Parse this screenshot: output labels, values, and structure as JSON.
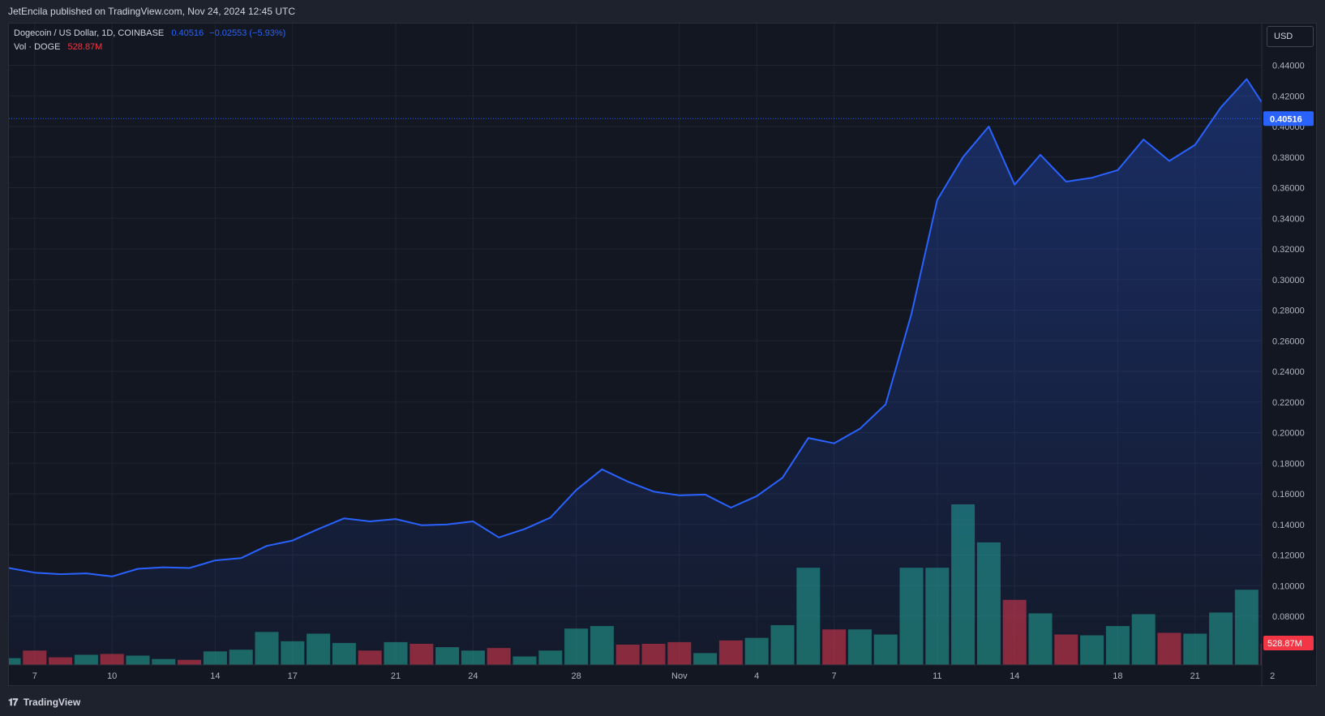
{
  "publish_header": "JetEncila published on TradingView.com, Nov 24, 2024 12:45 UTC",
  "legend": {
    "symbol": "Dogecoin / US Dollar, 1D, COINBASE",
    "price": "0.40516",
    "change": "−0.02553 (−5.93%)",
    "vol_label": "Vol · DOGE",
    "vol_value": "528.87M"
  },
  "currency_button": "USD",
  "footer_brand": "TradingView",
  "colors": {
    "background": "#131722",
    "line": "#2962ff",
    "volume_up": "#22ab94",
    "volume_down": "#f23645",
    "grid": "#1f2430"
  },
  "chart_data": {
    "type": "area",
    "y_axis": {
      "range": [
        0.07,
        0.455
      ],
      "ticks": [
        "0.08000",
        "0.10000",
        "0.12000",
        "0.14000",
        "0.16000",
        "0.18000",
        "0.20000",
        "0.22000",
        "0.24000",
        "0.26000",
        "0.28000",
        "0.30000",
        "0.32000",
        "0.34000",
        "0.36000",
        "0.38000",
        "0.40000",
        "0.42000",
        "0.44000"
      ]
    },
    "x_axis_ticks": [
      {
        "index": 1,
        "label": "7"
      },
      {
        "index": 4,
        "label": "10"
      },
      {
        "index": 8,
        "label": "14"
      },
      {
        "index": 11,
        "label": "17"
      },
      {
        "index": 15,
        "label": "21"
      },
      {
        "index": 18,
        "label": "24"
      },
      {
        "index": 22,
        "label": "28"
      },
      {
        "index": 26,
        "label": "Nov"
      },
      {
        "index": 29,
        "label": "4"
      },
      {
        "index": 32,
        "label": "7"
      },
      {
        "index": 36,
        "label": "11"
      },
      {
        "index": 39,
        "label": "14"
      },
      {
        "index": 43,
        "label": "18"
      },
      {
        "index": 46,
        "label": "21"
      },
      {
        "index": 49,
        "label": "2"
      }
    ],
    "close": [
      0.1115,
      0.1085,
      0.1075,
      0.108,
      0.106,
      0.111,
      0.112,
      0.1115,
      0.1165,
      0.118,
      0.126,
      0.1295,
      0.137,
      0.144,
      0.142,
      0.1435,
      0.1395,
      0.14,
      0.142,
      0.1315,
      0.137,
      0.1445,
      0.1625,
      0.176,
      0.168,
      0.1615,
      0.159,
      0.1595,
      0.151,
      0.1585,
      0.1705,
      0.1965,
      0.193,
      0.2025,
      0.2185,
      0.2775,
      0.352,
      0.38,
      0.4,
      0.362,
      0.3815,
      0.364,
      0.3665,
      0.3715,
      0.3915,
      0.3775,
      0.388,
      0.4125,
      0.431,
      0.40516
    ],
    "volume_up": [
      true,
      false,
      false,
      true,
      false,
      true,
      true,
      false,
      true,
      true,
      true,
      true,
      true,
      true,
      false,
      true,
      false,
      true,
      true,
      false,
      true,
      true,
      true,
      true,
      false,
      false,
      false,
      true,
      false,
      true,
      true,
      true,
      false,
      true,
      true,
      true,
      true,
      true,
      true,
      false,
      true,
      false,
      true,
      true,
      true,
      false,
      true,
      true,
      true,
      false
    ],
    "volume": [
      0.08,
      0.17,
      0.09,
      0.12,
      0.13,
      0.11,
      0.07,
      0.06,
      0.16,
      0.18,
      0.39,
      0.28,
      0.37,
      0.26,
      0.17,
      0.27,
      0.25,
      0.21,
      0.17,
      0.2,
      0.1,
      0.17,
      0.43,
      0.46,
      0.24,
      0.25,
      0.27,
      0.14,
      0.29,
      0.32,
      0.47,
      1.15,
      0.42,
      0.42,
      0.36,
      1.15,
      1.15,
      1.9,
      1.45,
      0.77,
      0.61,
      0.36,
      0.35,
      0.46,
      0.6,
      0.38,
      0.37,
      0.62,
      0.89,
      0.25
    ],
    "last_price_line": 0.40516
  }
}
